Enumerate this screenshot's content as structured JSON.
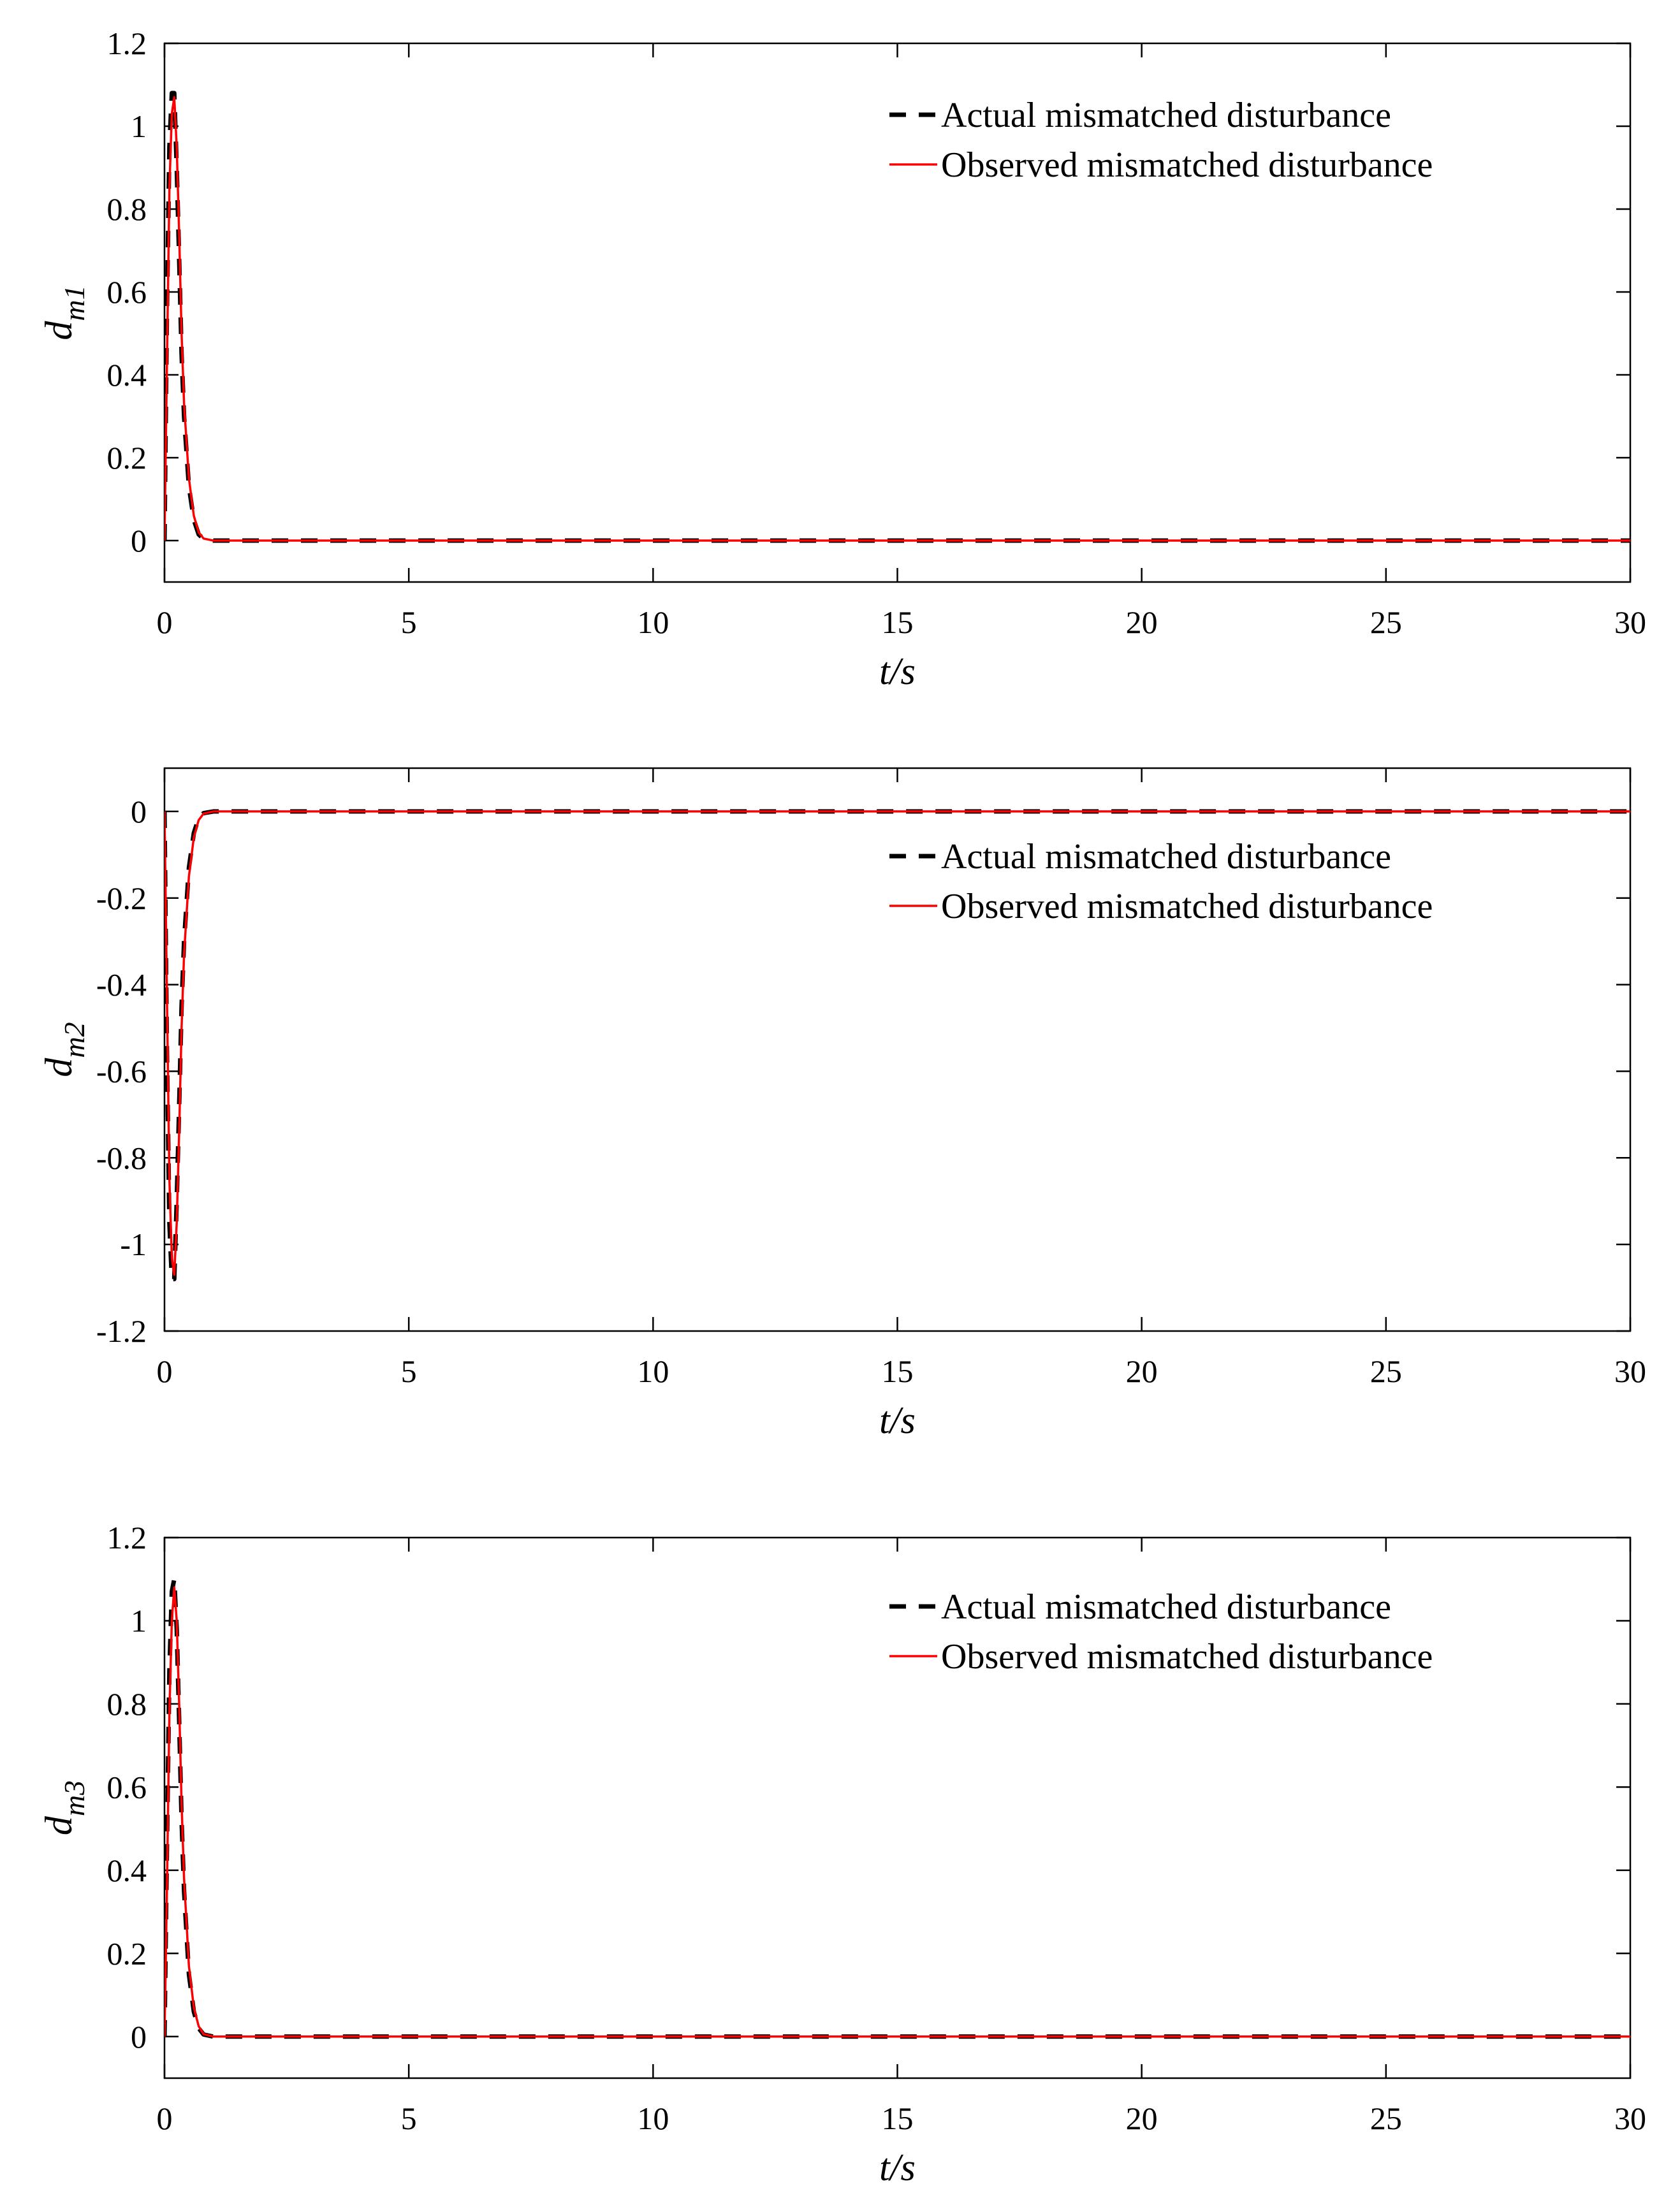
{
  "colors": {
    "actual": "#000000",
    "observed": "#ff0000",
    "axes": "#000000"
  },
  "chart_data": [
    {
      "type": "line",
      "xlim": [
        0,
        30
      ],
      "ylim": [
        -0.1,
        1.2
      ],
      "xticks": [
        "0",
        "5",
        "10",
        "15",
        "20",
        "25",
        "30"
      ],
      "yticks": [
        "0",
        "0.2",
        "0.4",
        "0.6",
        "0.8",
        "1",
        "1.2"
      ],
      "xlabel": "t/s",
      "ylabel": {
        "base": "d",
        "sub": "m1"
      },
      "legend_position": "top-right",
      "series": [
        {
          "name": "Actual mismatched disturbance",
          "style": "dashed",
          "x": [
            0,
            0.05,
            0.1,
            0.15,
            0.2,
            0.25,
            0.3,
            0.35,
            0.4,
            0.5,
            0.6,
            0.7,
            0.8,
            1.0,
            30
          ],
          "y": [
            0,
            0.55,
            0.95,
            1.08,
            1.08,
            0.9,
            0.68,
            0.45,
            0.3,
            0.13,
            0.05,
            0.015,
            0.004,
            0,
            0
          ]
        },
        {
          "name": "Observed mismatched disturbance",
          "style": "solid",
          "x": [
            0,
            0.05,
            0.1,
            0.15,
            0.2,
            0.25,
            0.3,
            0.35,
            0.4,
            0.5,
            0.6,
            0.7,
            0.8,
            1.0,
            30
          ],
          "y": [
            0,
            0.42,
            0.85,
            1.03,
            1.07,
            0.95,
            0.74,
            0.5,
            0.33,
            0.15,
            0.06,
            0.02,
            0.005,
            0,
            0
          ]
        }
      ]
    },
    {
      "type": "line",
      "xlim": [
        0,
        30
      ],
      "ylim": [
        -1.2,
        0.1
      ],
      "xticks": [
        "0",
        "5",
        "10",
        "15",
        "20",
        "25",
        "30"
      ],
      "yticks": [
        "-1.2",
        "-1",
        "-0.8",
        "-0.6",
        "-0.4",
        "-0.2",
        "0"
      ],
      "xlabel": "t/s",
      "ylabel": {
        "base": "d",
        "sub": "m2"
      },
      "legend_position": "top-right",
      "series": [
        {
          "name": "Actual mismatched disturbance",
          "style": "dashed",
          "x": [
            0,
            0.05,
            0.1,
            0.15,
            0.2,
            0.25,
            0.3,
            0.35,
            0.4,
            0.5,
            0.6,
            0.7,
            0.8,
            1.0,
            30
          ],
          "y": [
            0,
            -0.55,
            -0.95,
            -1.08,
            -1.08,
            -0.9,
            -0.68,
            -0.45,
            -0.3,
            -0.13,
            -0.05,
            -0.015,
            -0.004,
            0,
            0
          ]
        },
        {
          "name": "Observed mismatched disturbance",
          "style": "solid",
          "x": [
            0,
            0.05,
            0.1,
            0.15,
            0.2,
            0.25,
            0.3,
            0.35,
            0.4,
            0.5,
            0.6,
            0.7,
            0.8,
            1.0,
            30
          ],
          "y": [
            0,
            -0.42,
            -0.85,
            -1.03,
            -1.07,
            -0.95,
            -0.74,
            -0.5,
            -0.33,
            -0.15,
            -0.06,
            -0.02,
            -0.005,
            0,
            0
          ]
        }
      ]
    },
    {
      "type": "line",
      "xlim": [
        0,
        30
      ],
      "ylim": [
        -0.1,
        1.2
      ],
      "xticks": [
        "0",
        "5",
        "10",
        "15",
        "20",
        "25",
        "30"
      ],
      "yticks": [
        "0",
        "0.2",
        "0.4",
        "0.6",
        "0.8",
        "1",
        "1.2"
      ],
      "xlabel": "t/s",
      "ylabel": {
        "base": "d",
        "sub": "m3"
      },
      "legend_position": "top-right",
      "series": [
        {
          "name": "Actual mismatched disturbance",
          "style": "dashed",
          "x": [
            0,
            0.05,
            0.1,
            0.15,
            0.2,
            0.25,
            0.3,
            0.35,
            0.4,
            0.5,
            0.6,
            0.7,
            0.8,
            1.0,
            30
          ],
          "y": [
            0,
            0.45,
            0.88,
            1.07,
            1.1,
            0.98,
            0.76,
            0.52,
            0.35,
            0.15,
            0.06,
            0.02,
            0.005,
            0,
            0
          ]
        },
        {
          "name": "Observed mismatched disturbance",
          "style": "solid",
          "x": [
            0,
            0.05,
            0.1,
            0.15,
            0.2,
            0.25,
            0.3,
            0.35,
            0.4,
            0.5,
            0.6,
            0.7,
            0.8,
            1.0,
            30
          ],
          "y": [
            0,
            0.35,
            0.78,
            1.0,
            1.08,
            1.0,
            0.8,
            0.56,
            0.38,
            0.17,
            0.07,
            0.025,
            0.006,
            0,
            0
          ]
        }
      ]
    }
  ]
}
